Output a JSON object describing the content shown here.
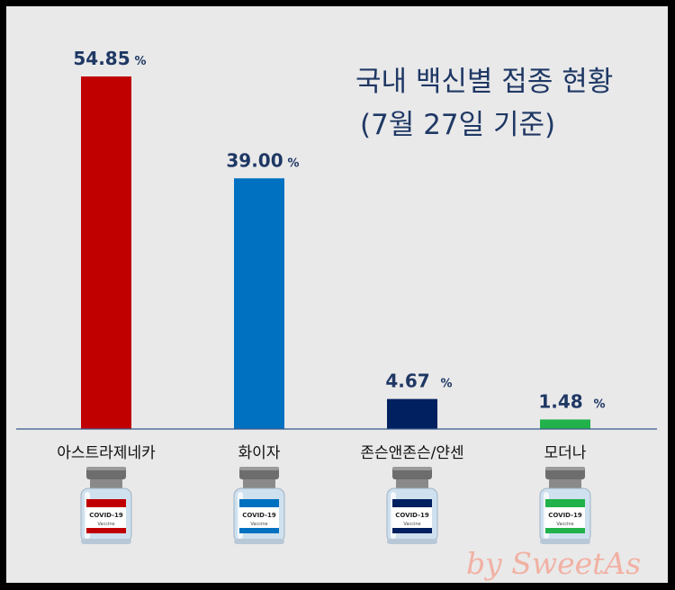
{
  "title_line1": "국내 백신별 접종 현황",
  "title_line2": "(7월 27일 기준)",
  "signature": "by SweetAs",
  "vial_label": "COVID-19",
  "vial_sublabel": "Vaccine",
  "chart_data": {
    "type": "bar",
    "title": "국내 백신별 접종 현황 (7월 27일 기준)",
    "categories": [
      "아스트라제네카",
      "화이자",
      "존슨앤존슨/얀센",
      "모더나"
    ],
    "values": [
      54.85,
      39.0,
      4.67,
      1.48
    ],
    "value_labels": [
      "54.85",
      "39.00",
      "4.67",
      "1.48"
    ],
    "unit": "%",
    "colors": [
      "#c00000",
      "#0070c0",
      "#002060",
      "#21b24b"
    ],
    "ylim": [
      0,
      54.85
    ],
    "grid": false
  }
}
